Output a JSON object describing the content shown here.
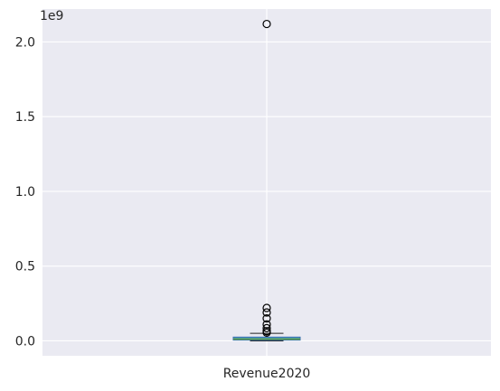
{
  "chart_data": {
    "type": "box",
    "categories": [
      "Revenue2020"
    ],
    "offset_label": "1e9",
    "yticks": [
      0.0,
      0.5,
      1.0,
      1.5,
      2.0
    ],
    "ytick_labels": [
      "0.0",
      "0.5",
      "1.0",
      "1.5",
      "2.0"
    ],
    "ylim": [
      -0.1,
      2.22
    ],
    "grid": true,
    "series": [
      {
        "whisker_low": 0.0,
        "q1": 0.005,
        "median": 0.012,
        "q3": 0.025,
        "whisker_high": 0.05,
        "outliers": [
          2.12,
          0.22,
          0.19,
          0.15,
          0.11,
          0.085,
          0.065,
          0.055
        ]
      }
    ],
    "colors": {
      "background": "#eaeaf2",
      "grid": "#ffffff",
      "box_fill": "#4c9fc4",
      "box_edge": "#3a6fb0",
      "median": "#5a9a3f",
      "whisker": "#222222"
    }
  }
}
